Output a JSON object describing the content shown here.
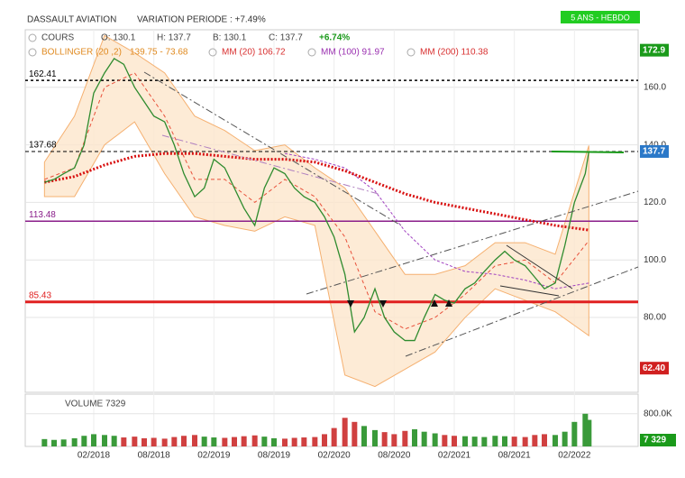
{
  "chart_data": {
    "type": "stock",
    "title": "DASSAULT AVIATION",
    "subtitle": "VARIATION PERIODE : +7.49%",
    "period": "5 ANS - HEBDO",
    "legend": {
      "cours": "COURS",
      "open": "O: 130.1",
      "high": "H: 137.7",
      "low": "B: 130.1",
      "close": "C: 137.7",
      "change": "+6.74%",
      "bollinger": "BOLLINGER (20 ,2)",
      "bollinger_values": "139.75 - 73.68",
      "mm20": "MM (20) 106.72",
      "mm100": "MM (100) 91.97",
      "mm200": "MM (200) 110.38"
    },
    "xlim": [
      2017.51,
      2022.61
    ],
    "xticks": [
      {
        "value": 2018.08,
        "label": "02/2018"
      },
      {
        "value": 2018.58,
        "label": "08/2018"
      },
      {
        "value": 2019.08,
        "label": "02/2019"
      },
      {
        "value": 2019.58,
        "label": "08/2019"
      },
      {
        "value": 2020.08,
        "label": "02/2020"
      },
      {
        "value": 2020.58,
        "label": "08/2020"
      },
      {
        "value": 2021.08,
        "label": "02/2021"
      },
      {
        "value": 2021.58,
        "label": "08/2021"
      },
      {
        "value": 2022.08,
        "label": "02/2022"
      }
    ],
    "ylim": [
      54,
      180
    ],
    "yticks": [
      {
        "value": 160,
        "label": "160.0"
      },
      {
        "value": 140,
        "label": "140.0"
      },
      {
        "value": 120,
        "label": "120.0"
      },
      {
        "value": 100,
        "label": "100.0"
      },
      {
        "value": 80,
        "label": "80.00"
      }
    ],
    "grid": true,
    "price": {
      "name": "COURS",
      "color": "#2e8b2e",
      "x": [
        2017.67,
        2017.75,
        2017.83,
        2017.92,
        2018.0,
        2018.08,
        2018.17,
        2018.25,
        2018.33,
        2018.42,
        2018.5,
        2018.58,
        2018.67,
        2018.75,
        2018.83,
        2018.92,
        2019.0,
        2019.08,
        2019.17,
        2019.25,
        2019.33,
        2019.42,
        2019.5,
        2019.58,
        2019.67,
        2019.75,
        2019.83,
        2019.92,
        2020.0,
        2020.08,
        2020.17,
        2020.25,
        2020.33,
        2020.42,
        2020.5,
        2020.58,
        2020.67,
        2020.75,
        2020.83,
        2020.92,
        2021.0,
        2021.08,
        2021.17,
        2021.25,
        2021.33,
        2021.42,
        2021.5,
        2021.58,
        2021.67,
        2021.75,
        2021.83,
        2021.92,
        2022.0,
        2022.08,
        2022.17,
        2022.2
      ],
      "values": [
        127,
        128,
        130,
        132,
        140,
        158,
        165,
        170,
        168,
        160,
        155,
        150,
        148,
        140,
        130,
        122,
        125,
        135,
        132,
        125,
        118,
        112,
        125,
        132,
        130,
        125,
        122,
        120,
        115,
        108,
        95,
        75,
        80,
        90,
        80,
        75,
        72,
        72,
        80,
        88,
        86,
        85,
        90,
        92,
        96,
        100,
        103,
        100,
        98,
        94,
        90,
        92,
        105,
        120,
        130,
        137.7
      ]
    },
    "volume": {
      "name": "VOLUME 7329",
      "color": "#d04040",
      "last": 7329,
      "last_label": "7 329",
      "ylim": [
        0,
        1280000
      ],
      "yticks": [
        {
          "value": 800000,
          "label": "800.0K"
        }
      ],
      "values": [
        180000,
        160000,
        170000,
        200000,
        260000,
        300000,
        280000,
        260000,
        220000,
        240000,
        200000,
        210000,
        190000,
        230000,
        260000,
        280000,
        240000,
        220000,
        210000,
        230000,
        250000,
        270000,
        240000,
        200000,
        190000,
        210000,
        220000,
        230000,
        300000,
        450000,
        700000,
        600000,
        500000,
        400000,
        350000,
        300000,
        380000,
        420000,
        360000,
        320000,
        280000,
        260000,
        250000,
        240000,
        230000,
        260000,
        250000,
        240000,
        230000,
        280000,
        300000,
        280000,
        360000,
        600000,
        800000,
        650000
      ]
    },
    "bollinger": {
      "color": "#f5b070",
      "fill": "#fde6cc",
      "x": [
        2017.67,
        2017.92,
        2018.17,
        2018.42,
        2018.67,
        2018.92,
        2019.17,
        2019.42,
        2019.67,
        2019.92,
        2020.17,
        2020.42,
        2020.67,
        2020.92,
        2021.17,
        2021.42,
        2021.67,
        2021.92,
        2022.2
      ],
      "upper": [
        134,
        150,
        178,
        172,
        165,
        150,
        145,
        138,
        140,
        132,
        125,
        110,
        95,
        95,
        98,
        106,
        106,
        102,
        139.75
      ],
      "lower": [
        122,
        122,
        140,
        148,
        130,
        115,
        112,
        110,
        115,
        112,
        60,
        56,
        62,
        68,
        80,
        90,
        86,
        82,
        73.68
      ]
    },
    "series": [
      {
        "name": "MM (20)",
        "color": "#e8503a",
        "dash": "4 3",
        "width": 1,
        "x": [
          2017.67,
          2017.92,
          2018.17,
          2018.42,
          2018.67,
          2018.92,
          2019.17,
          2019.42,
          2019.67,
          2019.92,
          2020.17,
          2020.42,
          2020.67,
          2020.92,
          2021.17,
          2021.42,
          2021.67,
          2021.92,
          2022.2
        ],
        "values": [
          128,
          132,
          160,
          165,
          150,
          128,
          128,
          120,
          128,
          122,
          108,
          82,
          76,
          80,
          88,
          98,
          100,
          92,
          106.72
        ]
      },
      {
        "name": "MM (100)",
        "color": "#a040c0",
        "dash": "3 2",
        "width": 1,
        "x": [
          2019.67,
          2019.92,
          2020.17,
          2020.42,
          2020.67,
          2020.92,
          2021.17,
          2021.42,
          2021.67,
          2021.92,
          2022.2
        ],
        "values": [
          137,
          135,
          132,
          124,
          110,
          100,
          96,
          95,
          93,
          90,
          91.97
        ]
      },
      {
        "name": "MM (200)",
        "color": "#d81010",
        "dash": "2 2",
        "width": 3,
        "x": [
          2017.67,
          2017.92,
          2018.17,
          2018.42,
          2018.67,
          2018.92,
          2019.17,
          2019.42,
          2019.67,
          2019.92,
          2020.17,
          2020.42,
          2020.67,
          2020.92,
          2021.17,
          2021.42,
          2021.67,
          2021.92,
          2022.2
        ],
        "values": [
          127,
          129,
          133,
          136,
          137,
          137,
          136,
          135,
          135,
          134,
          131,
          127,
          123,
          120,
          118,
          116,
          114,
          112,
          110.38
        ]
      }
    ],
    "levels": [
      {
        "value": 162.41,
        "color": "#000000",
        "dash": "3 3",
        "width": 1.5
      },
      {
        "value": 137.68,
        "color": "#000000",
        "dash": "4 3",
        "width": 1
      },
      {
        "value": 113.48,
        "color": "#8a1e8a",
        "dash": "",
        "width": 1.5
      },
      {
        "value": 85.43,
        "color": "#e02020",
        "dash": "",
        "width": 3
      }
    ],
    "markers": [
      {
        "value": 172.9,
        "color": "#1a9a1a"
      },
      {
        "value": 137.7,
        "color": "#2a78c8"
      },
      {
        "value": 62.4,
        "label": "62.40",
        "color": "#d02020"
      }
    ]
  }
}
